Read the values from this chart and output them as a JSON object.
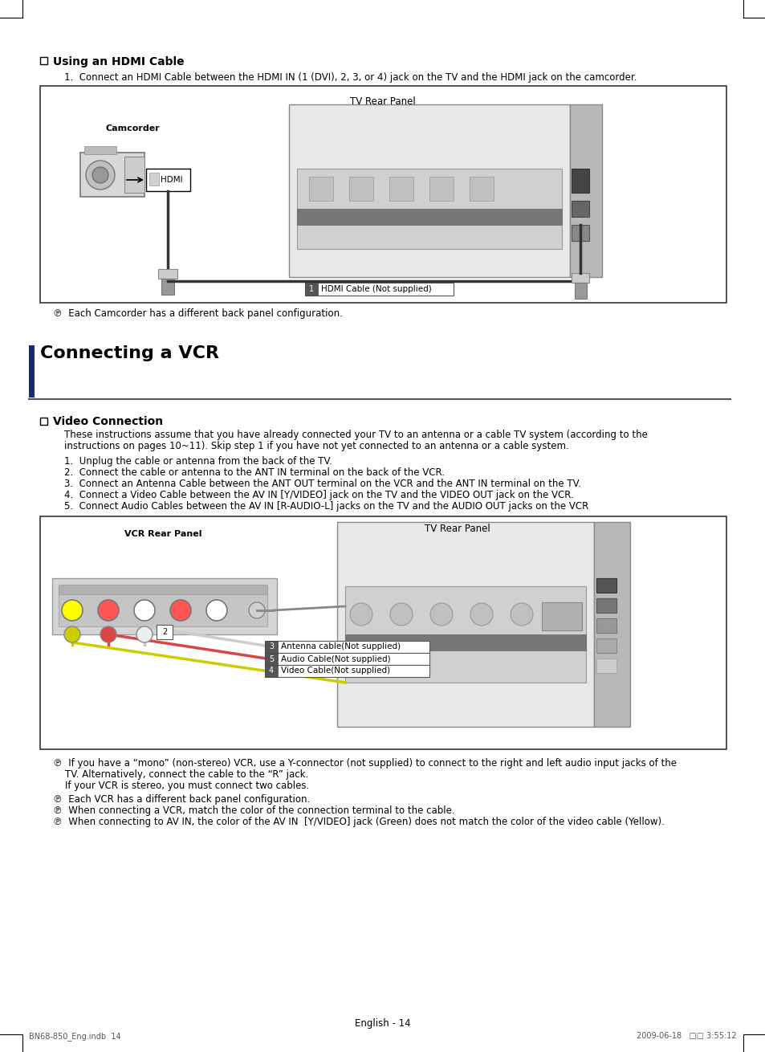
{
  "page_bg": "#ffffff",
  "section_title": "Connecting a VCR",
  "hdmi_section_title": "Using an HDMI Cable",
  "hdmi_step1": "1.  Connect an HDMI Cable between the HDMI IN (1 (DVI), 2, 3, or 4) jack on the TV and the HDMI jack on the camcorder.",
  "video_section_title": "Video Connection",
  "video_intro_line1": "These instructions assume that you have already connected your TV to an antenna or a cable TV system (according to the",
  "video_intro_line2": "instructions on pages 10~11). Skip step 1 if you have not yet connected to an antenna or a cable system.",
  "video_steps": [
    "1.  Unplug the cable or antenna from the back of the TV.",
    "2.  Connect the cable or antenna to the ANT IN terminal on the back of the VCR.",
    "3.  Connect an Antenna Cable between the ANT OUT terminal on the VCR and the ANT IN terminal on the TV.",
    "4.  Connect a Video Cable between the AV IN [Y/VIDEO] jack on the TV and the VIDEO OUT jack on the VCR.",
    "5.  Connect Audio Cables between the AV IN [R-AUDIO-L] jacks on the TV and the AUDIO OUT jacks on the VCR"
  ],
  "note1": "℗  Each Camcorder has a different back panel configuration.",
  "note_vcr1a": "℗  If you have a “mono” (non-stereo) VCR, use a Y-connector (not supplied) to connect to the right and left audio input jacks of the",
  "note_vcr1b": "    TV. Alternatively, connect the cable to the “R” jack.",
  "note_vcr1c": "    If your VCR is stereo, you must connect two cables.",
  "note_vcr2": "℗  Each VCR has a different back panel configuration.",
  "note_vcr3": "℗  When connecting a VCR, match the color of the connection terminal to the cable.",
  "note_vcr4": "℗  When connecting to AV IN, the color of the AV IN  [Y/VIDEO] jack (Green) does not match the color of the video cable (Yellow).",
  "footer_left": "BN68-850_Eng.indb  14",
  "footer_right": "2009-06-18   □□ 3:55:12",
  "page_num": "English - 14",
  "diagram1_label": "TV Rear Panel",
  "diagram1_sublabel": "Camcorder",
  "diagram1_hdmi_label": "HDMI",
  "diagram1_cable_label": "HDMI Cable (Not supplied)",
  "diagram2_label": "TV Rear Panel",
  "diagram2_vcr_label": "VCR Rear Panel",
  "diagram2_cable1": "Antenna cable(Not supplied)",
  "diagram2_cable2": "Audio Cable(Not supplied)",
  "diagram2_cable3": "Video Cable(Not supplied)"
}
